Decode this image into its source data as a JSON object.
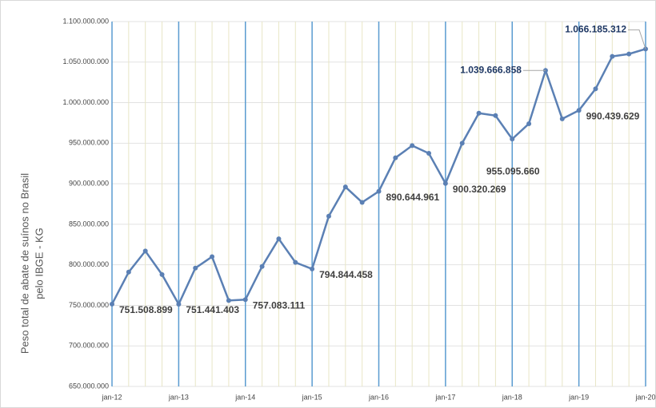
{
  "chart_data": {
    "type": "line",
    "y_label_lines": [
      "Peso total de abate de suínos no Brasil",
      "pelo IBGE - KG"
    ],
    "categories": [
      "jan-12",
      null,
      null,
      null,
      "jan-13",
      null,
      null,
      null,
      "jan-14",
      null,
      null,
      null,
      "jan-15",
      null,
      null,
      null,
      "jan-16",
      null,
      null,
      null,
      "jan-17",
      null,
      null,
      null,
      "jan-18",
      null,
      null,
      null,
      "jan-19",
      null,
      null,
      null,
      "jan-20"
    ],
    "series": [
      {
        "color": "#5b80b4",
        "values": [
          751508899,
          791000000,
          817000000,
          788000000,
          751441403,
          796000000,
          810000000,
          756000000,
          757083111,
          798000000,
          832000000,
          803000000,
          794844458,
          860000000,
          896000000,
          877000000,
          890644961,
          932000000,
          947000000,
          937500000,
          900320269,
          950000000,
          987000000,
          984000000,
          955095660,
          974000000,
          1039666858,
          980000000,
          990439629,
          1017000000,
          1057000000,
          1060000000,
          1066185312
        ],
        "value_labels": [
          "751.508.899",
          null,
          null,
          null,
          "751.441.403",
          null,
          null,
          null,
          "757.083.111",
          null,
          null,
          null,
          "794.844.458",
          null,
          null,
          null,
          "890.644.961",
          null,
          null,
          null,
          "900.320.269",
          null,
          null,
          null,
          "955.095.660",
          null,
          "1.039.666.858",
          null,
          "990.439.629",
          null,
          null,
          null,
          "1.066.185.312"
        ]
      }
    ],
    "ylim": [
      650000000,
      1100000000
    ],
    "yticks": [
      {
        "value": 650000000,
        "label": "650.000.000"
      },
      {
        "value": 700000000,
        "label": "700.000.000"
      },
      {
        "value": 750000000,
        "label": "750.000.000"
      },
      {
        "value": 800000000,
        "label": "800.000.000"
      },
      {
        "value": 850000000,
        "label": "850.000.000"
      },
      {
        "value": 900000000,
        "label": "900.000.000"
      },
      {
        "value": 950000000,
        "label": "950.000.000"
      },
      {
        "value": 1000000000,
        "label": "1.000.000.000"
      },
      {
        "value": 1050000000,
        "label": "1.050.000.000"
      },
      {
        "value": 1100000000,
        "label": "1.100.000.000"
      }
    ],
    "grid": true
  }
}
